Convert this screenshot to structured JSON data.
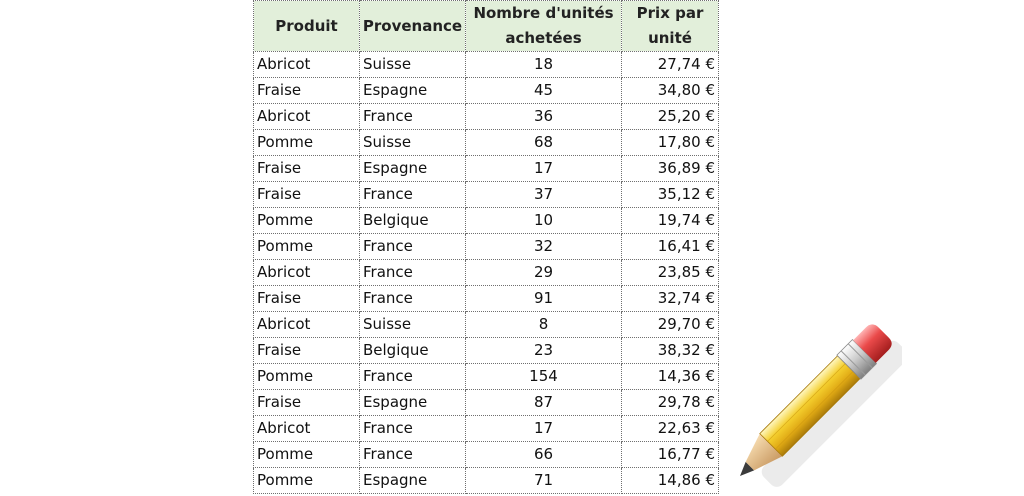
{
  "table": {
    "headers": [
      "Produit",
      "Provenance",
      "Nombre d'unités achetées",
      "Prix par unité"
    ],
    "rows": [
      [
        "Abricot",
        "Suisse",
        "18",
        "27,74 €"
      ],
      [
        "Fraise",
        "Espagne",
        "45",
        "34,80 €"
      ],
      [
        "Abricot",
        "France",
        "36",
        "25,20 €"
      ],
      [
        "Pomme",
        "Suisse",
        "68",
        "17,80 €"
      ],
      [
        "Fraise",
        "Espagne",
        "17",
        "36,89 €"
      ],
      [
        "Fraise",
        "France",
        "37",
        "35,12 €"
      ],
      [
        "Pomme",
        "Belgique",
        "10",
        "19,74 €"
      ],
      [
        "Pomme",
        "France",
        "32",
        "16,41 €"
      ],
      [
        "Abricot",
        "France",
        "29",
        "23,85 €"
      ],
      [
        "Fraise",
        "France",
        "91",
        "32,74 €"
      ],
      [
        "Abricot",
        "Suisse",
        "8",
        "29,70 €"
      ],
      [
        "Fraise",
        "Belgique",
        "23",
        "38,32 €"
      ],
      [
        "Pomme",
        "France",
        "154",
        "14,36 €"
      ],
      [
        "Fraise",
        "Espagne",
        "87",
        "29,78 €"
      ],
      [
        "Abricot",
        "France",
        "17",
        "22,63 €"
      ],
      [
        "Pomme",
        "France",
        "66",
        "16,77 €"
      ],
      [
        "Pomme",
        "Espagne",
        "71",
        "14,86 €"
      ]
    ]
  },
  "colors": {
    "header_background": "#e2efda",
    "grid_line": "#6f6f6f"
  },
  "decoration": {
    "icon": "pencil-icon"
  }
}
